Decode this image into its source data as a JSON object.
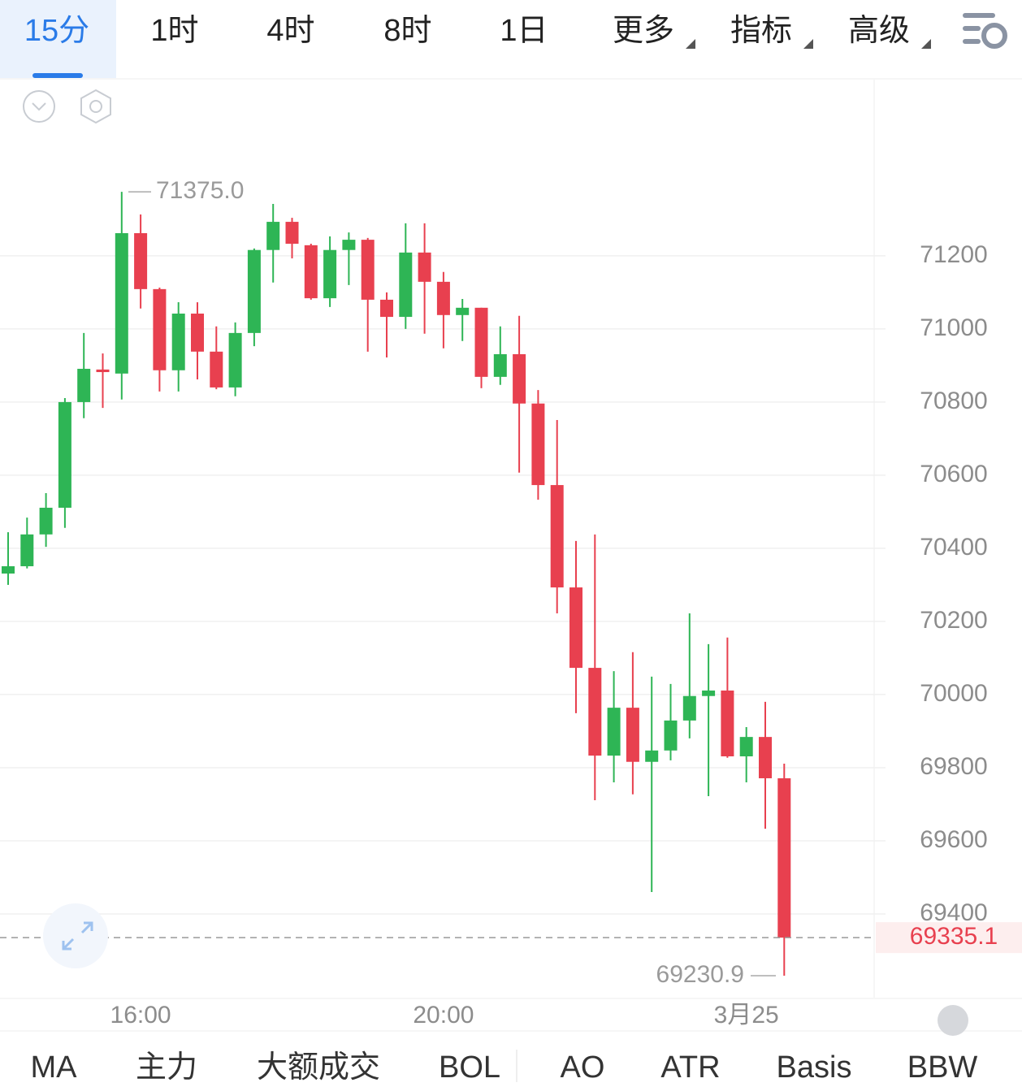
{
  "tabs": [
    "15分",
    "1时",
    "4时",
    "8时",
    "1日",
    "更多",
    "指标",
    "高级"
  ],
  "indicators": [
    "MA",
    "主力",
    "大额成交",
    "BOL",
    "AO",
    "ATR",
    "Basis",
    "BBW"
  ],
  "chart_data": {
    "type": "candlestick",
    "categories": [
      null,
      null,
      null,
      null,
      null,
      null,
      null,
      "16:00",
      null,
      null,
      null,
      null,
      null,
      null,
      null,
      null,
      null,
      null,
      null,
      null,
      null,
      null,
      null,
      "20:00",
      null,
      null,
      null,
      null,
      null,
      null,
      null,
      null,
      null,
      null,
      null,
      null,
      null,
      null,
      null,
      "3月25",
      null,
      null
    ],
    "open": [
      70331,
      70351,
      70438,
      70511,
      70800,
      70889,
      70878,
      71262,
      71109,
      70887,
      71042,
      70938,
      70840,
      70989,
      71216,
      71293,
      71229,
      71084,
      71216,
      71244,
      71080,
      71033,
      71209,
      71129,
      71038,
      71058,
      70869,
      70931,
      70796,
      70573,
      70293,
      70073,
      69833,
      69964,
      69816,
      69847,
      69929,
      69996,
      70011,
      69831,
      69884,
      69771
    ],
    "high": [
      70444,
      70484,
      70551,
      70811,
      70989,
      70933,
      71375,
      71313,
      71113,
      71073,
      71073,
      71007,
      71018,
      71220,
      71342,
      71304,
      71233,
      71253,
      71264,
      71249,
      71100,
      71289,
      71289,
      71156,
      71082,
      71058,
      71007,
      71036,
      70833,
      70751,
      70420,
      70438,
      70064,
      70116,
      70049,
      70029,
      70222,
      70138,
      70156,
      69911,
      69980,
      69811
    ],
    "low": [
      70300,
      70345,
      70404,
      70456,
      70756,
      70784,
      70807,
      71056,
      70829,
      70829,
      70862,
      70835,
      70816,
      70953,
      71127,
      71193,
      71080,
      71060,
      71120,
      70938,
      70922,
      71000,
      70987,
      70947,
      70967,
      70838,
      70847,
      70607,
      70533,
      70222,
      69949,
      69711,
      69760,
      69727,
      69460,
      69820,
      69880,
      69722,
      69827,
      69760,
      69633,
      69230.9
    ],
    "close": [
      70351,
      70438,
      70511,
      70800,
      70891,
      70882,
      71262,
      71109,
      70887,
      71042,
      70938,
      70840,
      70989,
      71216,
      71293,
      71233,
      71084,
      71216,
      71244,
      71080,
      71033,
      71209,
      71129,
      71038,
      71058,
      70869,
      70931,
      70796,
      70573,
      70293,
      70073,
      69833,
      69964,
      69816,
      69847,
      69929,
      69996,
      70011,
      69831,
      69884,
      69771,
      69335.1
    ],
    "up_color": "#2eb555",
    "down_color": "#e8404f",
    "ylim": [
      69171,
      71682
    ],
    "yticks": [
      69400,
      69600,
      69800,
      70000,
      70200,
      70400,
      70600,
      70800,
      71000,
      71200
    ],
    "grid": true,
    "last_price": 69335.1,
    "annotations": [
      {
        "value": 71375,
        "label": "71375.0"
      },
      {
        "value": 69230.9,
        "label": "69230.9"
      }
    ]
  }
}
